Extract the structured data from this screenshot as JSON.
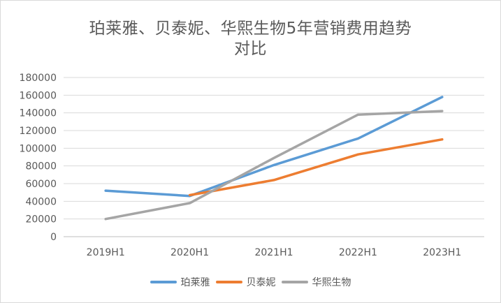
{
  "chart_data": {
    "type": "line",
    "title_lines": [
      "珀莱雅、贝泰妮、华熙生物5年营销费用趋势",
      "对比"
    ],
    "categories": [
      "2019H1",
      "2020H1",
      "2021H1",
      "2022H1",
      "2023H1"
    ],
    "ylim": [
      0,
      180000
    ],
    "yticks": [
      0,
      20000,
      40000,
      60000,
      80000,
      100000,
      120000,
      140000,
      160000,
      180000
    ],
    "grid": true,
    "legend_position": "bottom",
    "series": [
      {
        "name": "珀莱雅",
        "color": "#5b9bd5",
        "values": [
          52000,
          46000,
          81000,
          111000,
          158000
        ]
      },
      {
        "name": "贝泰妮",
        "color": "#ed7d31",
        "values": [
          null,
          47000,
          64000,
          93000,
          110000
        ]
      },
      {
        "name": "华熙生物",
        "color": "#a5a5a5",
        "values": [
          20000,
          38000,
          89000,
          138000,
          142000
        ]
      }
    ]
  }
}
